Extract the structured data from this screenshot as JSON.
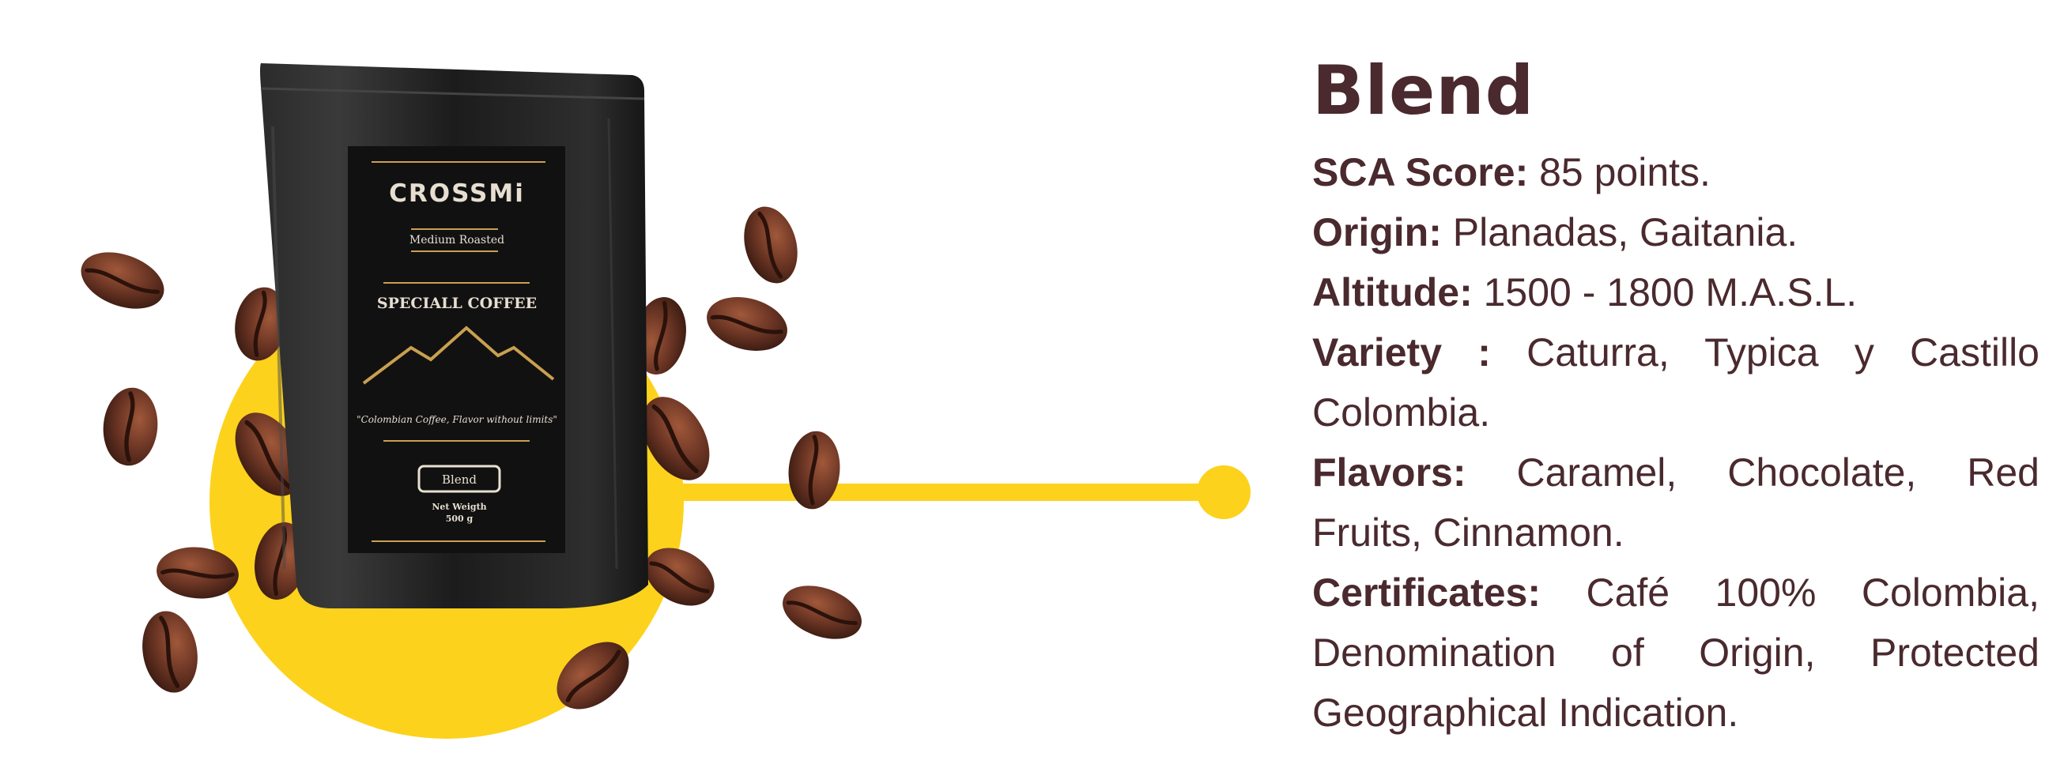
{
  "colors": {
    "accent_yellow": "#FCD21C",
    "text_brown": "#4A2A2E",
    "bag_black": "#1E1E1E",
    "gold": "#C9A050",
    "bean_brown": "#6B3524"
  },
  "bag": {
    "brand": "CROSSMi",
    "roast": "Medium Roasted",
    "headline": "SPECIALL COFFEE",
    "tagline": "\"Colombian Coffee, Flavor without limits\"",
    "variant": "Blend",
    "net_weight_label": "Net Weigth",
    "net_weight_value": "500 g"
  },
  "details": {
    "title": "Blend",
    "specs": [
      {
        "label": "SCA Score:",
        "value": " 85 points."
      },
      {
        "label": "Origin:",
        "value": " Planadas, Gaitania."
      },
      {
        "label": "Altitude:",
        "value": " 1500 - 1800 M.A.S.L."
      },
      {
        "label": "Variety :",
        "value": " Caturra, Typica y Castillo Colombia."
      },
      {
        "label": "Flavors:",
        "value": " Caramel, Chocolate, Red Fruits, Cinnamon."
      },
      {
        "label": "Certificates:",
        "value": " Café 100% Colombia, Denomination of Origin, Protected Geographical Indication."
      }
    ]
  }
}
